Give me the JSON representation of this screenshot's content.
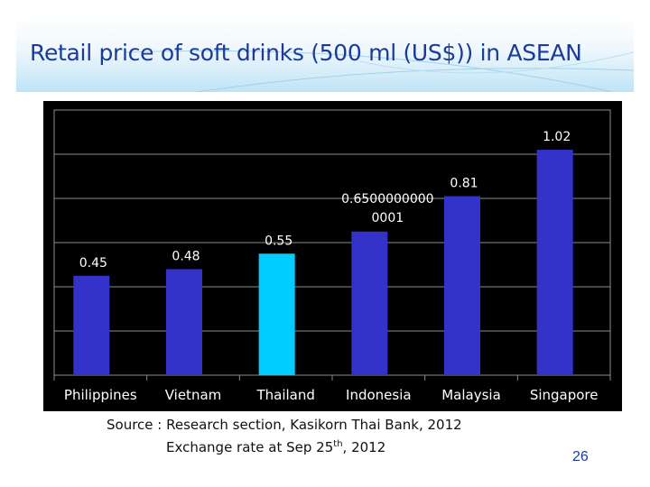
{
  "slide": {
    "title": "Retail price of soft drinks  (500 ml (US$))  in ASEAN",
    "source_line1": "Source : Research section, Kasikorn Thai Bank, 2012",
    "source_line2_pre": "Exchange rate at Sep 25",
    "source_line2_sup": "th",
    "source_line2_post": ",  2012",
    "page_number": "26"
  },
  "colors": {
    "bar": "#3333cc",
    "highlight": "#00ccff",
    "background": "#000000",
    "label": "#ffffff",
    "grid": "#8c8c8c"
  },
  "chart_data": {
    "type": "bar",
    "categories": [
      "Philippines",
      "Vietnam",
      "Thailand",
      "Indonesia",
      "Malaysia",
      "Singapore"
    ],
    "values": [
      0.45,
      0.48,
      0.55,
      0.65,
      0.81,
      1.02
    ],
    "data_labels": [
      "0.45",
      "0.48",
      "0.55",
      "0.65000000000001",
      "0.81",
      "1.02"
    ],
    "highlight_category": "Thailand",
    "ylim": [
      0,
      1.2
    ],
    "grid": true,
    "legend": "none"
  }
}
